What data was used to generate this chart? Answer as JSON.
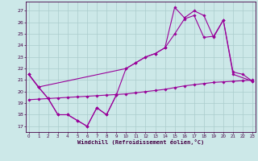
{
  "xlabel": "Windchill (Refroidissement éolien,°C)",
  "background_color": "#cce8e8",
  "grid_color": "#aacccc",
  "line_color": "#990099",
  "xlim": [
    -0.3,
    23.3
  ],
  "ylim": [
    16.5,
    27.8
  ],
  "yticks": [
    17,
    18,
    19,
    20,
    21,
    22,
    23,
    24,
    25,
    26,
    27
  ],
  "xticks": [
    0,
    1,
    2,
    3,
    4,
    5,
    6,
    7,
    8,
    9,
    10,
    11,
    12,
    13,
    14,
    15,
    16,
    17,
    18,
    19,
    20,
    21,
    22,
    23
  ],
  "line1_x": [
    0,
    1,
    2,
    3,
    4,
    5,
    6,
    7,
    8,
    9
  ],
  "line1_y": [
    21.5,
    20.4,
    19.4,
    18.0,
    18.0,
    17.5,
    17.0,
    18.6,
    18.0,
    19.7
  ],
  "line2_x": [
    0,
    1,
    2,
    3,
    4,
    5,
    6,
    7,
    8,
    9,
    10,
    11,
    12,
    13,
    14,
    15,
    16,
    17,
    18,
    19,
    20,
    21,
    22,
    23
  ],
  "line2_y": [
    19.3,
    19.35,
    19.4,
    19.45,
    19.5,
    19.55,
    19.6,
    19.65,
    19.7,
    19.75,
    19.8,
    19.9,
    20.0,
    20.1,
    20.2,
    20.35,
    20.5,
    20.6,
    20.7,
    20.8,
    20.85,
    20.9,
    20.95,
    21.0
  ],
  "line3_x": [
    0,
    1,
    10,
    11,
    12,
    13,
    14,
    15,
    16,
    17,
    18,
    19,
    20,
    21,
    23
  ],
  "line3_y": [
    21.5,
    20.4,
    22.0,
    22.5,
    23.0,
    23.3,
    23.8,
    25.0,
    26.3,
    26.6,
    24.7,
    24.8,
    26.2,
    21.5,
    20.9
  ],
  "line4_x": [
    0,
    1,
    2,
    3,
    4,
    5,
    6,
    7,
    8,
    9,
    10,
    11,
    12,
    13,
    14,
    15,
    16,
    17,
    18,
    19,
    20,
    21,
    22,
    23
  ],
  "line4_y": [
    21.5,
    20.4,
    19.4,
    18.0,
    18.0,
    17.5,
    17.0,
    18.6,
    18.0,
    19.7,
    22.0,
    22.5,
    23.0,
    23.3,
    23.8,
    27.3,
    26.4,
    27.0,
    26.6,
    24.7,
    26.2,
    21.7,
    21.5,
    20.9
  ]
}
